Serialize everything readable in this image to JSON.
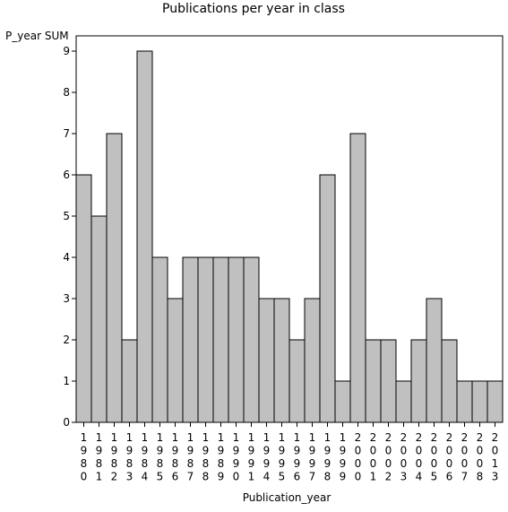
{
  "chart_data": {
    "type": "bar",
    "title": "Publications per year in class",
    "ylabel": "P_year SUM",
    "xlabel": "Publication_year",
    "ylim": [
      0,
      9
    ],
    "yticks": [
      "0",
      "1",
      "2",
      "3",
      "4",
      "5",
      "6",
      "7",
      "8",
      "9"
    ],
    "categories": [
      "1980",
      "1981",
      "1982",
      "1983",
      "1984",
      "1985",
      "1986",
      "1987",
      "1988",
      "1989",
      "1990",
      "1991",
      "1994",
      "1995",
      "1996",
      "1997",
      "1998",
      "1999",
      "2000",
      "2001",
      "2002",
      "2003",
      "2004",
      "2005",
      "2006",
      "2007",
      "2008",
      "2013"
    ],
    "values": [
      6,
      5,
      7,
      2,
      9,
      4,
      3,
      4,
      4,
      4,
      4,
      4,
      3,
      3,
      2,
      3,
      6,
      1,
      7,
      2,
      2,
      1,
      2,
      3,
      2,
      1,
      1,
      1
    ],
    "grid": false,
    "colors": {
      "bar_fill": "#c0c0c0",
      "bar_stroke": "#000000",
      "axis": "#000000",
      "background": "#ffffff"
    }
  }
}
